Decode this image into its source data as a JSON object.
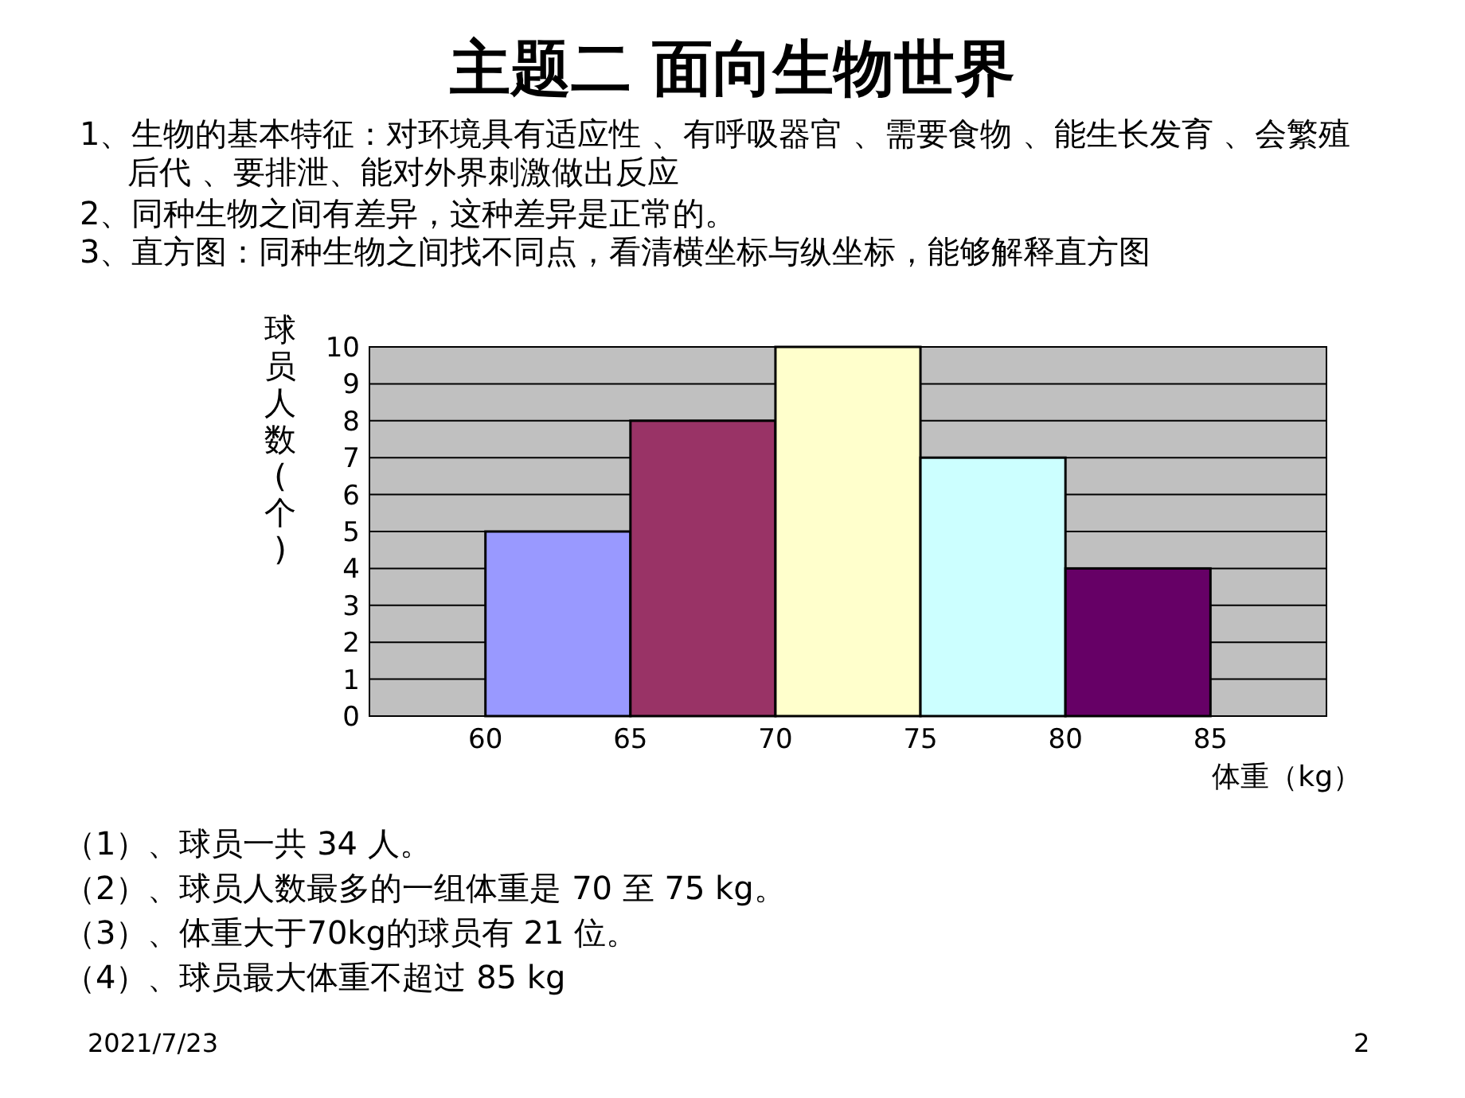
{
  "chart_data": {
    "type": "histogram",
    "title": "主题二 面向生物世界",
    "bins": [
      60,
      65,
      70,
      75,
      80,
      85
    ],
    "values": [
      5,
      8,
      10,
      7,
      4
    ],
    "colors": [
      "#9999ff",
      "#993366",
      "#ffffcc",
      "#ccffff",
      "#660066"
    ],
    "xlim": [
      56,
      89
    ],
    "xticks": [
      60,
      65,
      70,
      75,
      80,
      85
    ],
    "ylim": [
      0,
      10
    ],
    "yticks": [
      0,
      1,
      2,
      3,
      4,
      5,
      6,
      7,
      8,
      9,
      10
    ],
    "grid": "y",
    "ylabel": "球员人数(个)",
    "xlabel": "体重（kg）",
    "annotations": [
      "1、生物的基本特征：对环境具有适应性 、有呼吸器官 、需要食物 、能生长发育 、会繁殖后代 、要排泄、能对外界刺激做出反应",
      "2、同种生物之间有差异，这种差异是正常的。",
      "3、直方图：同种生物之间找不同点，看清横坐标与纵坐标，能够解释直方图",
      "（1）、球员一共 34 人。",
      "（2）、球员人数最多的一组体重是 70 至 75 kg。",
      "（3）、体重大于70kg的球员有 21 位。",
      "（4）、球员最大体重不超过 85 kg",
      "2021/7/23",
      "2"
    ]
  }
}
